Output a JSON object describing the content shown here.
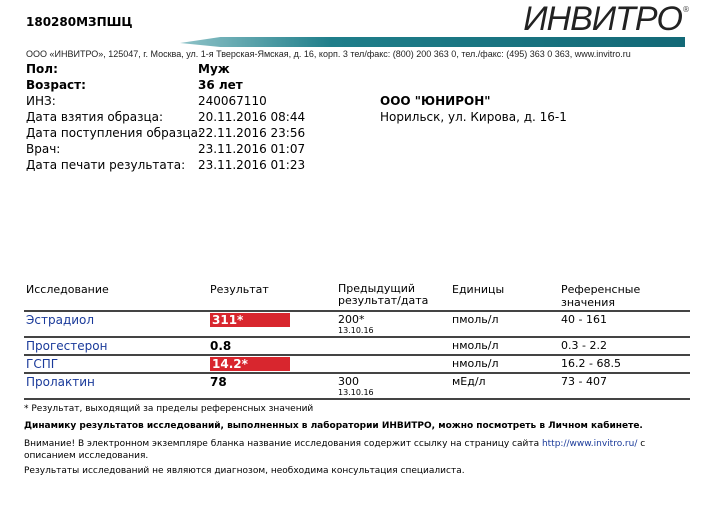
{
  "header": {
    "code": "180280МЗПШЦ",
    "logo": "ИНВИТРО",
    "address": "ООО «ИНВИТРО», 125047, г. Москва, ул. 1-я Тверская-Ямская, д. 16, корп. 3  тел/факс: (800) 200 363 0, тел./факс: (495) 363 0 363, www.invitro.ru"
  },
  "patient": {
    "sex_label": "Пол:",
    "sex": "Муж",
    "fields": [
      {
        "label": "Возраст:",
        "value": "36 лет",
        "bold": true
      },
      {
        "label": "ИНЗ:",
        "value": "240067110"
      },
      {
        "label": "Дата взятия образца:",
        "value": "20.11.2016 08:44"
      },
      {
        "label": "Дата поступления образца:",
        "value": "22.11.2016 23:56"
      },
      {
        "label": "Врач:",
        "value": "23.11.2016 01:07"
      },
      {
        "label": "Дата печати результата:",
        "value": "23.11.2016 01:23"
      }
    ]
  },
  "org": {
    "name": "ООО \"ЮНИРОН\"",
    "address": "Норильск, ул. Кирова, д. 16-1"
  },
  "table": {
    "headers": [
      "Исследование",
      "Результат",
      "Предыдущий результат/дата",
      "Единицы",
      "Референсные значения"
    ],
    "rows": [
      {
        "name": "Эстрадиол",
        "result": "311*",
        "flag": true,
        "prev": "200*",
        "prev_date": "13.10.16",
        "units": "пмоль/л",
        "ref": "40 - 161"
      },
      {
        "name": "Прогестерон",
        "result": "0.8",
        "flag": false,
        "prev": "",
        "prev_date": "",
        "units": "нмоль/л",
        "ref": "0.3 - 2.2"
      },
      {
        "name": "ГСПГ",
        "result": "14.2*",
        "flag": true,
        "prev": "",
        "prev_date": "",
        "units": "нмоль/л",
        "ref": "16.2 - 68.5"
      },
      {
        "name": "Пролактин",
        "result": "78",
        "flag": false,
        "prev": "300",
        "prev_date": "13.10.16",
        "units": "мЕд/л",
        "ref": "73 - 407"
      }
    ]
  },
  "notes": {
    "asterisk": "* Результат, выходящий за пределы референсных значений",
    "dynamics": "Динамику результатов исследований, выполненных в лаборатории ИНВИТРО, можно посмотреть в Личном кабинете.",
    "attention_pre": "Внимание! В электронном экземпляре бланка название исследования содержит ссылку на страницу сайта ",
    "link": "http://www.invitro.ru/",
    "attention_post": " с описанием исследования.",
    "disclaimer": "Результаты исследований не являются диагнозом, необходима консультация специалиста."
  },
  "colors": {
    "flag": "#d8262e",
    "link": "#1a3a9a",
    "brand_bar": "#136977"
  }
}
